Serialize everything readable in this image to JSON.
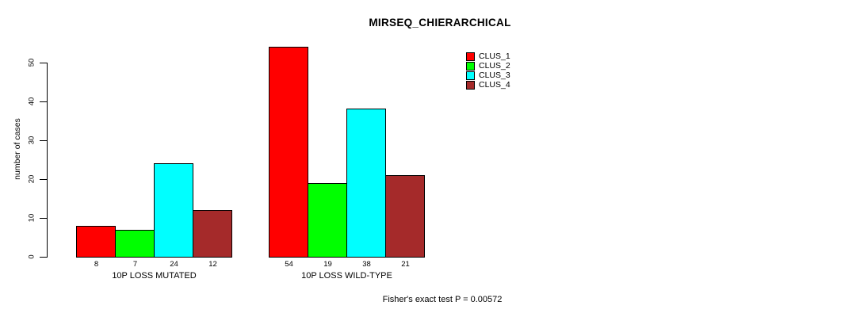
{
  "chart_data": {
    "type": "bar",
    "title": "MIRSEQ_CHIERARCHICAL",
    "ylabel": "number of cases",
    "xlabel": "",
    "categories": [
      "10P LOSS MUTATED",
      "10P LOSS WILD-TYPE"
    ],
    "series": [
      {
        "name": "CLUS_1",
        "color": "#FF0000",
        "values": [
          8,
          54
        ]
      },
      {
        "name": "CLUS_2",
        "color": "#00FF00",
        "values": [
          7,
          19
        ]
      },
      {
        "name": "CLUS_3",
        "color": "#00FFFF",
        "values": [
          24,
          38
        ]
      },
      {
        "name": "CLUS_4",
        "color": "#A52A2A",
        "values": [
          12,
          21
        ]
      }
    ],
    "bar_value_labels": [
      [
        "8",
        "7",
        "24",
        "12"
      ],
      [
        "54",
        "19",
        "38",
        "21"
      ]
    ],
    "yticks": [
      0,
      10,
      20,
      30,
      40,
      50
    ],
    "ylim": [
      0,
      54
    ],
    "grid": false,
    "legend_position": "top-right",
    "annotation": "Fisher's exact test P = 0.00572"
  }
}
